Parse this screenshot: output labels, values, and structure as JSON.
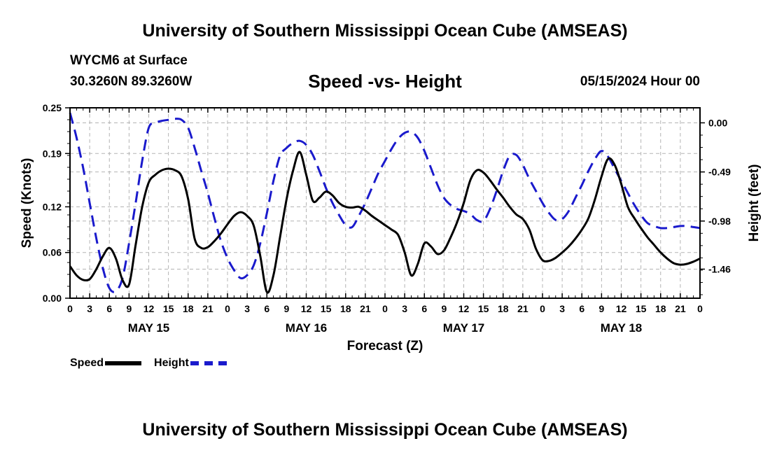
{
  "header": {
    "title": "University of Southern Mississippi Ocean Cube (AMSEAS)",
    "station": "WYCM6 at Surface",
    "coords": "30.3260N  89.3260W",
    "subtitle": "Speed -vs- Height",
    "date": "05/15/2024 Hour 00",
    "footer_title": "University of Southern Mississippi Ocean Cube (AMSEAS)"
  },
  "legend": {
    "speed": "Speed",
    "height": "Height"
  },
  "colors": {
    "speed": "#000000",
    "height": "#1a1acc",
    "grid": "#b4b4b4"
  },
  "chart_data": {
    "type": "line",
    "title": "Speed -vs- Height",
    "xlabel": "Forecast (Z)",
    "ylabel": "Speed (Knots)",
    "ylabel_right": "Height (feet)",
    "xlim": [
      0,
      96
    ],
    "ylim": [
      0,
      0.25
    ],
    "ylim_right": [
      -1.75,
      0.15
    ],
    "grid": true,
    "legend_position": "bottom-left",
    "x_tick_labels": [
      "0",
      "3",
      "6",
      "9",
      "12",
      "15",
      "18",
      "21",
      "0",
      "3",
      "6",
      "9",
      "12",
      "15",
      "18",
      "21",
      "0",
      "3",
      "6",
      "9",
      "12",
      "15",
      "18",
      "21",
      "0",
      "3",
      "6",
      "9",
      "12",
      "15",
      "18",
      "21",
      "0"
    ],
    "y_ticks": [
      0.0,
      0.06,
      0.12,
      0.19,
      0.25
    ],
    "y_tick_labels": [
      "0.00",
      "0.06",
      "0.12",
      "0.19",
      "0.25"
    ],
    "y_right_ticks": [
      0.0,
      -0.49,
      -0.98,
      -1.46
    ],
    "y_right_tick_labels": [
      "0.00",
      "-0.49",
      "-0.98",
      "-1.46"
    ],
    "day_labels": [
      {
        "x": 12,
        "label": "MAY 15"
      },
      {
        "x": 36,
        "label": "MAY 16"
      },
      {
        "x": 60,
        "label": "MAY 17"
      },
      {
        "x": 84,
        "label": "MAY 18"
      }
    ],
    "series": [
      {
        "name": "Speed",
        "axis": "left",
        "x": [
          0,
          1,
          2,
          3,
          4,
          5,
          6,
          7,
          8,
          9,
          10,
          11,
          12,
          13,
          14,
          15,
          16,
          17,
          18,
          19,
          20,
          21,
          22,
          23,
          24,
          25,
          26,
          27,
          28,
          29,
          30,
          31,
          32,
          33,
          34,
          35,
          36,
          37,
          38,
          39,
          40,
          41,
          42,
          43,
          44,
          45,
          46,
          47,
          48,
          49,
          50,
          51,
          52,
          53,
          54,
          55,
          56,
          57,
          58,
          59,
          60,
          61,
          62,
          63,
          64,
          65,
          66,
          67,
          68,
          69,
          70,
          71,
          72,
          73,
          74,
          75,
          76,
          77,
          78,
          79,
          80,
          81,
          82,
          83,
          84,
          85,
          86,
          87,
          88,
          89,
          90,
          91,
          92,
          93,
          94,
          95,
          96
        ],
        "values": [
          0.042,
          0.03,
          0.024,
          0.025,
          0.038,
          0.055,
          0.066,
          0.052,
          0.024,
          0.018,
          0.07,
          0.12,
          0.152,
          0.162,
          0.168,
          0.17,
          0.168,
          0.16,
          0.13,
          0.078,
          0.066,
          0.067,
          0.075,
          0.085,
          0.097,
          0.108,
          0.113,
          0.108,
          0.095,
          0.055,
          0.008,
          0.03,
          0.08,
          0.13,
          0.168,
          0.192,
          0.162,
          0.128,
          0.132,
          0.14,
          0.135,
          0.125,
          0.12,
          0.119,
          0.12,
          0.115,
          0.108,
          0.102,
          0.096,
          0.09,
          0.083,
          0.06,
          0.03,
          0.045,
          0.072,
          0.068,
          0.058,
          0.063,
          0.08,
          0.1,
          0.125,
          0.155,
          0.168,
          0.165,
          0.155,
          0.143,
          0.132,
          0.12,
          0.11,
          0.104,
          0.09,
          0.065,
          0.05,
          0.049,
          0.053,
          0.06,
          0.068,
          0.078,
          0.09,
          0.105,
          0.13,
          0.16,
          0.183,
          0.175,
          0.15,
          0.12,
          0.105,
          0.092,
          0.08,
          0.07,
          0.06,
          0.052,
          0.046,
          0.044,
          0.045,
          0.048,
          0.052
        ]
      },
      {
        "name": "Height",
        "axis": "right",
        "x": [
          0,
          1,
          2,
          3,
          4,
          5,
          6,
          7,
          8,
          9,
          10,
          11,
          12,
          13,
          14,
          15,
          16,
          17,
          18,
          19,
          20,
          21,
          22,
          23,
          24,
          25,
          26,
          27,
          28,
          29,
          30,
          31,
          32,
          33,
          34,
          35,
          36,
          37,
          38,
          39,
          40,
          41,
          42,
          43,
          44,
          45,
          46,
          47,
          48,
          49,
          50,
          51,
          52,
          53,
          54,
          55,
          56,
          57,
          58,
          59,
          60,
          61,
          62,
          63,
          64,
          65,
          66,
          67,
          68,
          69,
          70,
          71,
          72,
          73,
          74,
          75,
          76,
          77,
          78,
          79,
          80,
          81,
          82,
          83,
          84,
          85,
          86,
          87,
          88,
          89,
          90,
          91,
          92,
          93,
          94,
          95,
          96
        ],
        "values": [
          0.1,
          -0.15,
          -0.45,
          -0.8,
          -1.15,
          -1.45,
          -1.65,
          -1.68,
          -1.55,
          -1.2,
          -0.8,
          -0.38,
          -0.05,
          0.0,
          0.02,
          0.03,
          0.04,
          0.03,
          -0.05,
          -0.25,
          -0.48,
          -0.7,
          -0.95,
          -1.18,
          -1.35,
          -1.47,
          -1.55,
          -1.52,
          -1.42,
          -1.2,
          -0.9,
          -0.58,
          -0.33,
          -0.25,
          -0.2,
          -0.18,
          -0.22,
          -0.32,
          -0.48,
          -0.65,
          -0.8,
          -0.92,
          -1.02,
          -1.04,
          -0.93,
          -0.8,
          -0.65,
          -0.5,
          -0.38,
          -0.26,
          -0.16,
          -0.1,
          -0.09,
          -0.15,
          -0.28,
          -0.45,
          -0.62,
          -0.75,
          -0.82,
          -0.86,
          -0.88,
          -0.91,
          -0.97,
          -0.98,
          -0.86,
          -0.68,
          -0.48,
          -0.33,
          -0.32,
          -0.42,
          -0.56,
          -0.68,
          -0.8,
          -0.9,
          -0.97,
          -0.96,
          -0.88,
          -0.75,
          -0.62,
          -0.48,
          -0.36,
          -0.28,
          -0.34,
          -0.46,
          -0.58,
          -0.7,
          -0.82,
          -0.92,
          -1.0,
          -1.03,
          -1.05,
          -1.05,
          -1.04,
          -1.03,
          -1.03,
          -1.04,
          -1.05
        ]
      }
    ]
  },
  "axis_labels": {
    "x": "Forecast (Z)",
    "y_left": "Speed (Knots)",
    "y_right": "Height (feet)"
  }
}
